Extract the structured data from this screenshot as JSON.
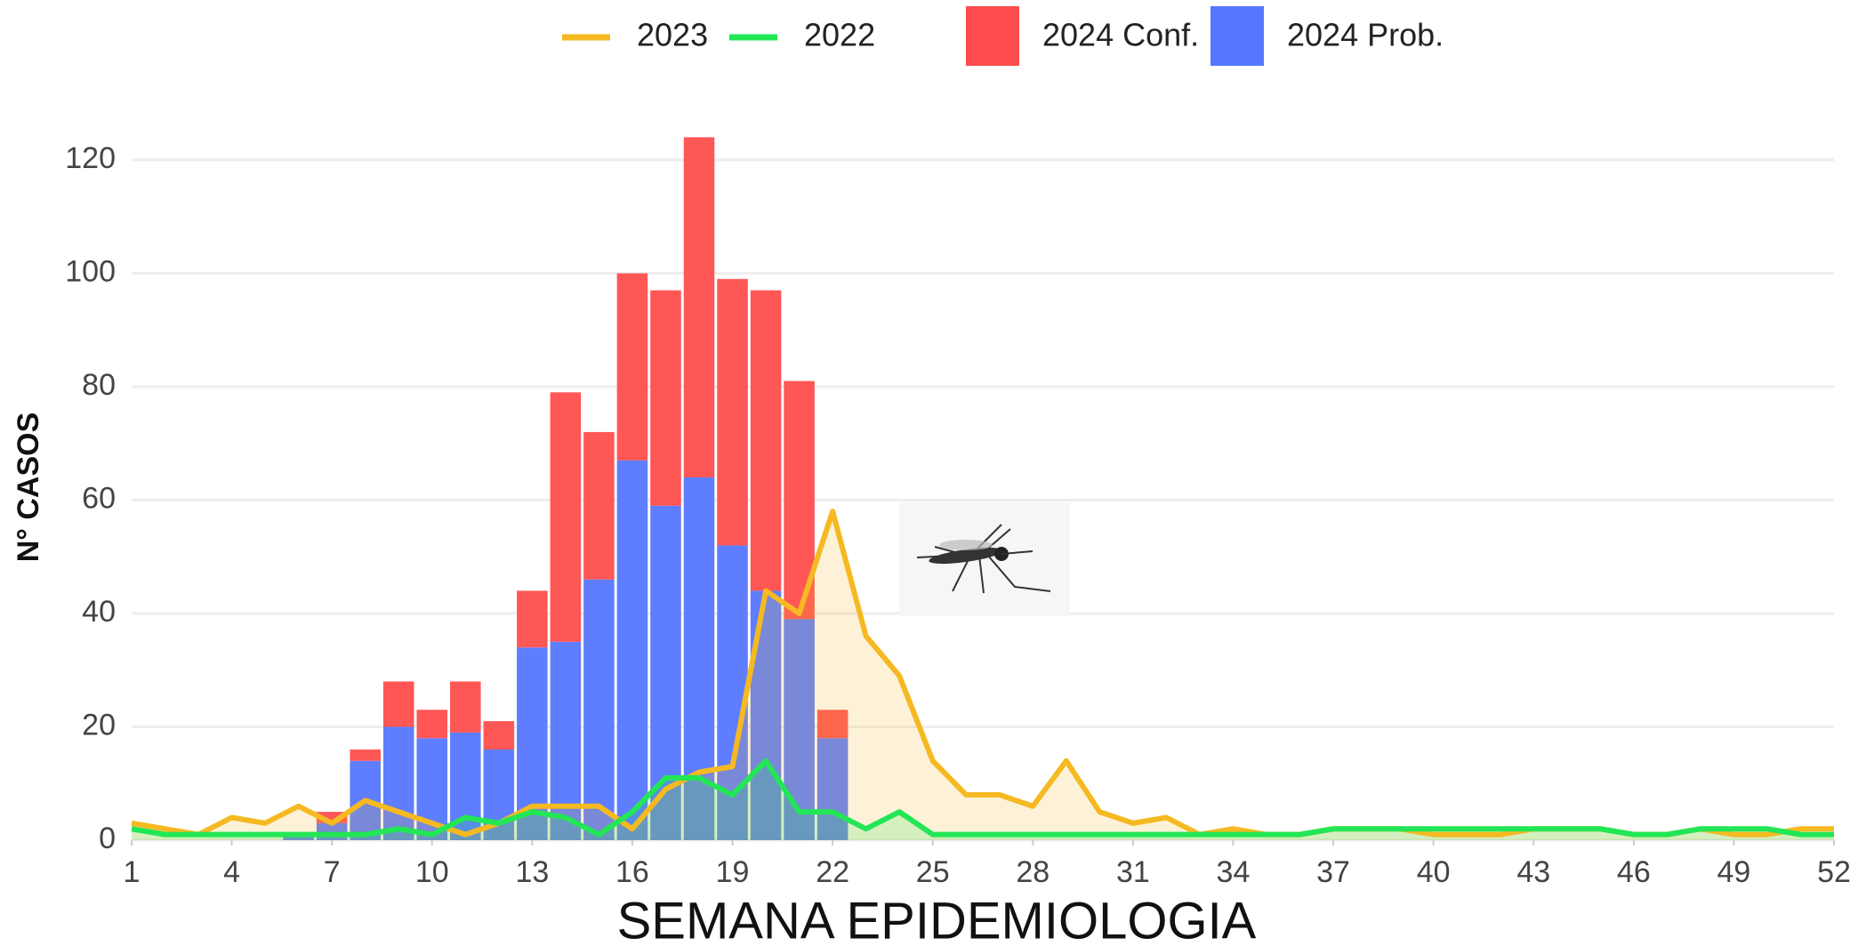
{
  "chart_data": {
    "type": "bar",
    "x_label": "SEMANA EPIDEMIOLOGIA",
    "y_label": "N° CASOS",
    "x": [
      1,
      2,
      3,
      4,
      5,
      6,
      7,
      8,
      9,
      10,
      11,
      12,
      13,
      14,
      15,
      16,
      17,
      18,
      19,
      20,
      21,
      22,
      23,
      24,
      25,
      26,
      27,
      28,
      29,
      30,
      31,
      32,
      33,
      34,
      35,
      36,
      37,
      38,
      39,
      40,
      41,
      42,
      43,
      44,
      45,
      46,
      47,
      48,
      49,
      50,
      51,
      52
    ],
    "series": [
      {
        "name": "2023",
        "type": "line",
        "color": "#f5b921",
        "values": [
          3,
          2,
          1,
          4,
          3,
          6,
          3,
          7,
          5,
          3,
          1,
          3,
          6,
          6,
          6,
          2,
          9,
          12,
          13,
          44,
          40,
          58,
          36,
          29,
          14,
          8,
          8,
          6,
          14,
          5,
          3,
          4,
          1,
          2,
          1,
          1,
          2,
          2,
          2,
          1,
          1,
          1,
          2,
          2,
          2,
          1,
          1,
          2,
          1,
          1,
          2,
          2
        ]
      },
      {
        "name": "2022",
        "type": "line",
        "color": "#22e655",
        "values": [
          2,
          1,
          1,
          1,
          1,
          1,
          1,
          1,
          2,
          1,
          4,
          3,
          5,
          4,
          1,
          5,
          11,
          11,
          8,
          14,
          5,
          5,
          2,
          5,
          1,
          1,
          1,
          1,
          1,
          1,
          1,
          1,
          1,
          1,
          1,
          1,
          2,
          2,
          2,
          2,
          2,
          2,
          2,
          2,
          2,
          1,
          1,
          2,
          2,
          2,
          1,
          1
        ]
      },
      {
        "name": "2024 Conf.",
        "type": "bar",
        "color": "#ff4d4d",
        "values": [
          null,
          null,
          null,
          null,
          null,
          0,
          2,
          2,
          8,
          5,
          9,
          5,
          10,
          44,
          26,
          33,
          38,
          60,
          47,
          53,
          42,
          5,
          null,
          null,
          null,
          null,
          null,
          null,
          null,
          null,
          null,
          null,
          null,
          null,
          null,
          null,
          null,
          null,
          null,
          null,
          null,
          null,
          null,
          null,
          null,
          null,
          null,
          null,
          null,
          null,
          null,
          null
        ]
      },
      {
        "name": "2024 Prob.",
        "type": "bar",
        "color": "#5577ff",
        "values": [
          null,
          null,
          null,
          null,
          null,
          1,
          3,
          14,
          20,
          18,
          19,
          16,
          34,
          35,
          46,
          67,
          59,
          64,
          52,
          44,
          39,
          18,
          null,
          null,
          null,
          null,
          null,
          null,
          null,
          null,
          null,
          null,
          null,
          null,
          null,
          null,
          null,
          null,
          null,
          null,
          null,
          null,
          null,
          null,
          null,
          null,
          null,
          null,
          null,
          null,
          null,
          null
        ]
      }
    ],
    "xlim": [
      1,
      52
    ],
    "xticks": [
      1,
      4,
      7,
      10,
      13,
      16,
      19,
      22,
      25,
      28,
      31,
      34,
      37,
      40,
      43,
      46,
      49,
      52
    ],
    "ylim": [
      0,
      125
    ],
    "yticks": [
      0,
      20,
      40,
      60,
      80,
      100,
      120
    ],
    "grid": true,
    "legend": "top"
  }
}
